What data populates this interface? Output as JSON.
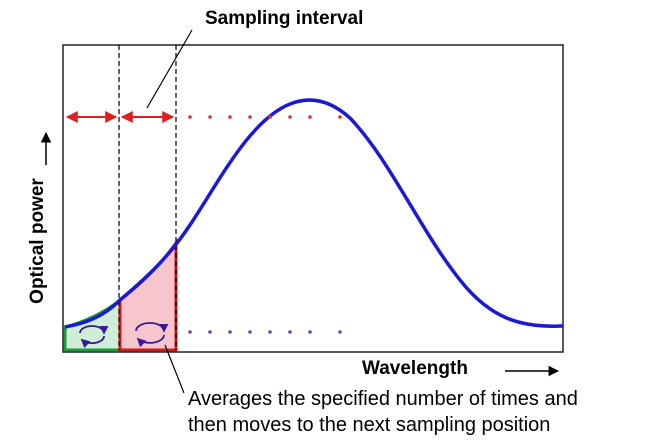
{
  "labels": {
    "sampling_interval": "Sampling interval",
    "x_axis": "Wavelength",
    "y_axis": "Optical power",
    "note_line1": "Averages the specified number of times and",
    "note_line2": "then moves to the next sampling position"
  },
  "colors": {
    "curve": "#1a1ad6",
    "interval_arrow": "#e02020",
    "dots_red": "#e03030",
    "dots_purple": "#7a3fb0",
    "green_box": "#1a9a3a",
    "green_fill": "#cfeed6",
    "red_box": "#cc1a1a",
    "red_fill": "#f6c6cc",
    "cycle_arrow": "#3a1a9a"
  }
}
